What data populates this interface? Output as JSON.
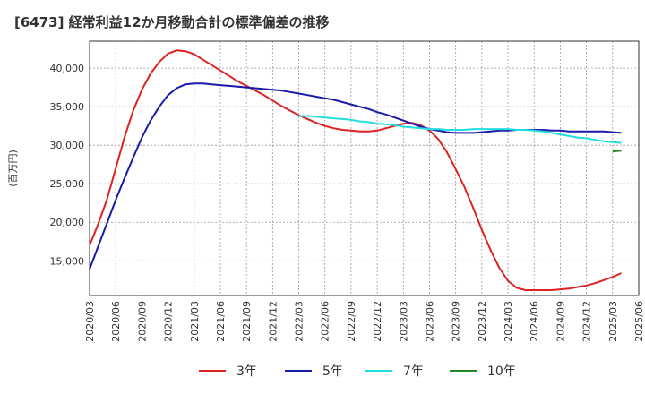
{
  "title": "[6473]  経常利益12か月移動合計の標準偏差の推移",
  "chart_data": {
    "type": "line",
    "title": "[6473]  経常利益12か月移動合計の標準偏差の推移",
    "ylabel": "(百万円)",
    "xlabel": "",
    "ylim": [
      10500,
      43500
    ],
    "xlim": [
      "2020/03",
      "2025/06"
    ],
    "grid": true,
    "legend_position": "bottom",
    "y_ticks": [
      15000,
      20000,
      25000,
      30000,
      35000,
      40000
    ],
    "y_tick_labels": [
      "15,000",
      "20,000",
      "25,000",
      "30,000",
      "35,000",
      "40,000"
    ],
    "x_ticks": [
      "2020/03",
      "2020/06",
      "2020/09",
      "2020/12",
      "2021/03",
      "2021/06",
      "2021/09",
      "2021/12",
      "2022/03",
      "2022/06",
      "2022/09",
      "2022/12",
      "2023/03",
      "2023/06",
      "2023/09",
      "2023/12",
      "2024/03",
      "2024/06",
      "2024/09",
      "2024/12",
      "2025/03",
      "2025/06"
    ],
    "series": [
      {
        "name": "3年",
        "color": "#dd2222",
        "points": [
          [
            "2020/03",
            17000
          ],
          [
            "2020/04",
            19800
          ],
          [
            "2020/05",
            23000
          ],
          [
            "2020/06",
            27000
          ],
          [
            "2020/07",
            31000
          ],
          [
            "2020/08",
            34500
          ],
          [
            "2020/09",
            37200
          ],
          [
            "2020/10",
            39300
          ],
          [
            "2020/11",
            40800
          ],
          [
            "2020/12",
            41900
          ],
          [
            "2021/01",
            42300
          ],
          [
            "2021/02",
            42200
          ],
          [
            "2021/03",
            41800
          ],
          [
            "2021/04",
            41100
          ],
          [
            "2021/05",
            40400
          ],
          [
            "2021/06",
            39700
          ],
          [
            "2021/07",
            39000
          ],
          [
            "2021/08",
            38300
          ],
          [
            "2021/09",
            37700
          ],
          [
            "2021/10",
            37100
          ],
          [
            "2021/11",
            36500
          ],
          [
            "2021/12",
            35800
          ],
          [
            "2022/01",
            35100
          ],
          [
            "2022/02",
            34500
          ],
          [
            "2022/03",
            33900
          ],
          [
            "2022/04",
            33400
          ],
          [
            "2022/05",
            32900
          ],
          [
            "2022/06",
            32500
          ],
          [
            "2022/07",
            32200
          ],
          [
            "2022/08",
            32000
          ],
          [
            "2022/09",
            31900
          ],
          [
            "2022/10",
            31800
          ],
          [
            "2022/11",
            31800
          ],
          [
            "2022/12",
            31900
          ],
          [
            "2023/01",
            32200
          ],
          [
            "2023/02",
            32500
          ],
          [
            "2023/03",
            32800
          ],
          [
            "2023/04",
            32900
          ],
          [
            "2023/05",
            32600
          ],
          [
            "2023/06",
            31900
          ],
          [
            "2023/07",
            30800
          ],
          [
            "2023/08",
            29100
          ],
          [
            "2023/09",
            26900
          ],
          [
            "2023/10",
            24600
          ],
          [
            "2023/11",
            21900
          ],
          [
            "2023/12",
            19000
          ],
          [
            "2024/01",
            16400
          ],
          [
            "2024/02",
            14100
          ],
          [
            "2024/03",
            12400
          ],
          [
            "2024/04",
            11500
          ],
          [
            "2024/05",
            11200
          ],
          [
            "2024/06",
            11200
          ],
          [
            "2024/07",
            11200
          ],
          [
            "2024/08",
            11200
          ],
          [
            "2024/09",
            11300
          ],
          [
            "2024/10",
            11400
          ],
          [
            "2024/11",
            11600
          ],
          [
            "2024/12",
            11800
          ],
          [
            "2025/01",
            12100
          ],
          [
            "2025/02",
            12500
          ],
          [
            "2025/03",
            12900
          ],
          [
            "2025/04",
            13400
          ]
        ]
      },
      {
        "name": "5年",
        "color": "#1a1aaa",
        "points": [
          [
            "2020/03",
            13900
          ],
          [
            "2020/04",
            16900
          ],
          [
            "2020/05",
            19900
          ],
          [
            "2020/06",
            22900
          ],
          [
            "2020/07",
            25700
          ],
          [
            "2020/08",
            28400
          ],
          [
            "2020/09",
            31000
          ],
          [
            "2020/10",
            33200
          ],
          [
            "2020/11",
            35000
          ],
          [
            "2020/12",
            36500
          ],
          [
            "2021/01",
            37400
          ],
          [
            "2021/02",
            37900
          ],
          [
            "2021/03",
            38000
          ],
          [
            "2021/04",
            38000
          ],
          [
            "2021/05",
            37900
          ],
          [
            "2021/06",
            37800
          ],
          [
            "2021/07",
            37700
          ],
          [
            "2021/08",
            37600
          ],
          [
            "2021/09",
            37500
          ],
          [
            "2021/10",
            37400
          ],
          [
            "2021/11",
            37300
          ],
          [
            "2021/12",
            37200
          ],
          [
            "2022/01",
            37100
          ],
          [
            "2022/02",
            36900
          ],
          [
            "2022/03",
            36700
          ],
          [
            "2022/04",
            36500
          ],
          [
            "2022/05",
            36300
          ],
          [
            "2022/06",
            36100
          ],
          [
            "2022/07",
            35900
          ],
          [
            "2022/08",
            35600
          ],
          [
            "2022/09",
            35300
          ],
          [
            "2022/10",
            35000
          ],
          [
            "2022/11",
            34700
          ],
          [
            "2022/12",
            34300
          ],
          [
            "2023/01",
            34000
          ],
          [
            "2023/02",
            33600
          ],
          [
            "2023/03",
            33200
          ],
          [
            "2023/04",
            32800
          ],
          [
            "2023/05",
            32400
          ],
          [
            "2023/06",
            32100
          ],
          [
            "2023/07",
            31900
          ],
          [
            "2023/08",
            31700
          ],
          [
            "2023/09",
            31600
          ],
          [
            "2023/10",
            31600
          ],
          [
            "2023/11",
            31600
          ],
          [
            "2023/12",
            31700
          ],
          [
            "2024/01",
            31800
          ],
          [
            "2024/02",
            31900
          ],
          [
            "2024/03",
            31900
          ],
          [
            "2024/04",
            32000
          ],
          [
            "2024/05",
            32000
          ],
          [
            "2024/06",
            32000
          ],
          [
            "2024/07",
            32000
          ],
          [
            "2024/08",
            31900
          ],
          [
            "2024/09",
            31900
          ],
          [
            "2024/10",
            31800
          ],
          [
            "2024/11",
            31800
          ],
          [
            "2024/12",
            31800
          ],
          [
            "2025/01",
            31800
          ],
          [
            "2025/02",
            31800
          ],
          [
            "2025/03",
            31700
          ],
          [
            "2025/04",
            31600
          ]
        ]
      },
      {
        "name": "7年",
        "color": "#22dddd",
        "points": [
          [
            "2022/03",
            33800
          ],
          [
            "2022/04",
            33800
          ],
          [
            "2022/05",
            33700
          ],
          [
            "2022/06",
            33600
          ],
          [
            "2022/07",
            33500
          ],
          [
            "2022/08",
            33400
          ],
          [
            "2022/09",
            33300
          ],
          [
            "2022/10",
            33100
          ],
          [
            "2022/11",
            33000
          ],
          [
            "2022/12",
            32800
          ],
          [
            "2023/01",
            32700
          ],
          [
            "2023/02",
            32600
          ],
          [
            "2023/03",
            32400
          ],
          [
            "2023/04",
            32300
          ],
          [
            "2023/05",
            32200
          ],
          [
            "2023/06",
            32100
          ],
          [
            "2023/07",
            32100
          ],
          [
            "2023/08",
            32000
          ],
          [
            "2023/09",
            32000
          ],
          [
            "2023/10",
            32000
          ],
          [
            "2023/11",
            32100
          ],
          [
            "2023/12",
            32100
          ],
          [
            "2024/01",
            32100
          ],
          [
            "2024/02",
            32100
          ],
          [
            "2024/03",
            32100
          ],
          [
            "2024/04",
            32000
          ],
          [
            "2024/05",
            32000
          ],
          [
            "2024/06",
            31900
          ],
          [
            "2024/07",
            31800
          ],
          [
            "2024/08",
            31600
          ],
          [
            "2024/09",
            31400
          ],
          [
            "2024/10",
            31200
          ],
          [
            "2024/11",
            31000
          ],
          [
            "2024/12",
            30900
          ],
          [
            "2025/01",
            30700
          ],
          [
            "2025/02",
            30500
          ],
          [
            "2025/03",
            30400
          ],
          [
            "2025/04",
            30300
          ]
        ]
      },
      {
        "name": "10年",
        "color": "#228822",
        "points": [
          [
            "2025/03",
            29200
          ],
          [
            "2025/04",
            29300
          ]
        ]
      }
    ]
  }
}
